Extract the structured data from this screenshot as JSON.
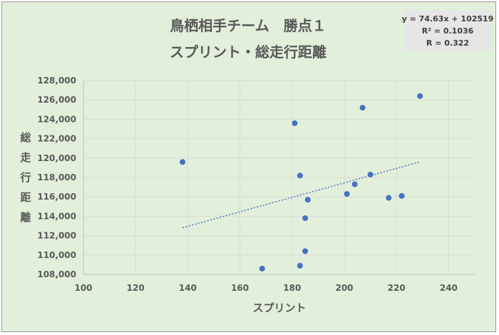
{
  "chart_data": {
    "type": "scatter",
    "title_line1": "鳥栖相手チーム　勝点１",
    "title_line2": "スプリント・総走行距離",
    "xlabel": "スプリント",
    "ylabel_chars": [
      "総",
      "走",
      "行",
      "距",
      "離"
    ],
    "xlim": [
      100,
      250
    ],
    "ylim": [
      108000,
      128000
    ],
    "x_ticks": [
      100,
      120,
      140,
      160,
      180,
      200,
      220,
      240
    ],
    "y_ticks": [
      108000,
      110000,
      112000,
      114000,
      116000,
      118000,
      120000,
      122000,
      124000,
      126000,
      128000
    ],
    "x_tick_labels": [
      "100",
      "120",
      "140",
      "160",
      "180",
      "200",
      "220",
      "240"
    ],
    "y_tick_labels": [
      "108,000",
      "110,000",
      "112,000",
      "114,000",
      "116,000",
      "118,000",
      "120,000",
      "122,000",
      "124,000",
      "126,000",
      "128,000"
    ],
    "points": [
      {
        "x": 138,
        "y": 119600
      },
      {
        "x": 168.5,
        "y": 108600
      },
      {
        "x": 181,
        "y": 123600
      },
      {
        "x": 183,
        "y": 118200
      },
      {
        "x": 183,
        "y": 108900
      },
      {
        "x": 185,
        "y": 113800
      },
      {
        "x": 185,
        "y": 110400
      },
      {
        "x": 186,
        "y": 115700
      },
      {
        "x": 201,
        "y": 116300
      },
      {
        "x": 204,
        "y": 117300
      },
      {
        "x": 207,
        "y": 125200
      },
      {
        "x": 210,
        "y": 118300
      },
      {
        "x": 217,
        "y": 115900
      },
      {
        "x": 222,
        "y": 116100
      },
      {
        "x": 229,
        "y": 126400
      }
    ],
    "trendline": {
      "slope": 74.63,
      "intercept": 102519,
      "x_start": 138,
      "x_end": 229
    },
    "equation_lines": [
      "y = 74.63x + 102519",
      "R² = 0.1036",
      "R = 0.322"
    ],
    "grid": true,
    "colors": {
      "background": "#e2efda",
      "point": "#4472c4",
      "trend": "#4472c4",
      "equation_box": "#e7e6e6"
    }
  }
}
